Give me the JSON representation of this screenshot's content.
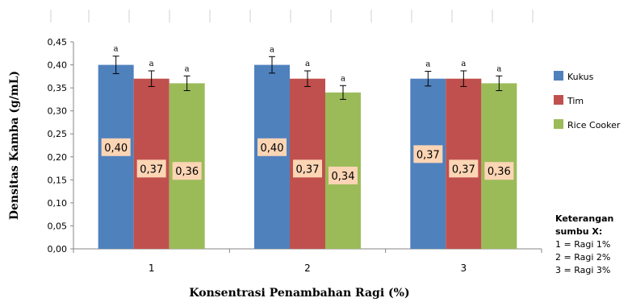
{
  "chart_data": {
    "type": "bar",
    "categories": [
      "1",
      "2",
      "3"
    ],
    "series": [
      {
        "name": "Kukus",
        "color": "#4f81bd",
        "values": [
          0.4,
          0.4,
          0.37
        ],
        "errors": [
          0.019,
          0.018,
          0.016
        ],
        "sig": [
          "a",
          "a",
          "a"
        ],
        "data_labels": [
          "0,40",
          "0,40",
          "0,37"
        ]
      },
      {
        "name": "Tim",
        "color": "#c0504d",
        "values": [
          0.37,
          0.37,
          0.37
        ],
        "errors": [
          0.017,
          0.017,
          0.017
        ],
        "sig": [
          "a",
          "a",
          "a"
        ],
        "data_labels": [
          "0,37",
          "0,37",
          "0,37"
        ]
      },
      {
        "name": "Rice Cooker",
        "color": "#9bbb59",
        "values": [
          0.36,
          0.34,
          0.36
        ],
        "errors": [
          0.016,
          0.015,
          0.016
        ],
        "sig": [
          "a",
          "a",
          "a"
        ],
        "data_labels": [
          "0,36",
          "0,34",
          "0,36"
        ]
      }
    ],
    "ylim": [
      0,
      0.45
    ],
    "yticks": [
      "0,00",
      "0,05",
      "0,10",
      "0,15",
      "0,20",
      "0,25",
      "0,30",
      "0,35",
      "0,40",
      "0,45"
    ],
    "ylabel": "Densitas Kamba (g/mL)",
    "xlabel": "Konsentrasi Penambahan Ragi (%)",
    "legend_position": "right",
    "grid": false,
    "label_box_color": "#fcd5b5"
  },
  "note": {
    "title": "Keterangan sumbu X:",
    "lines": [
      "1 = Ragi 1%",
      "2 = Ragi 2%",
      "3 = Ragi 3%"
    ]
  }
}
